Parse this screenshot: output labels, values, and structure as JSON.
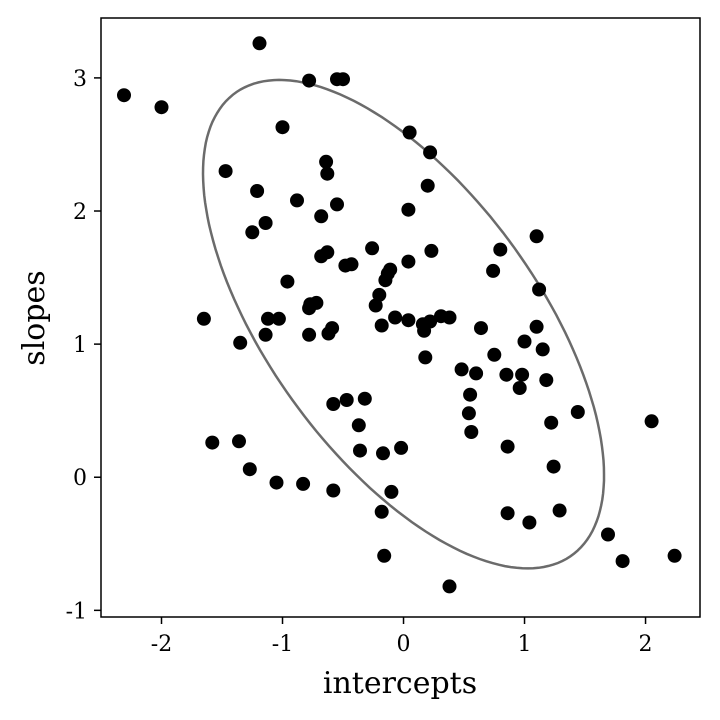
{
  "chart_data": {
    "type": "scatter",
    "xlabel": "intercepts",
    "ylabel": "slopes",
    "xlim": [
      -2.5,
      2.45
    ],
    "ylim": [
      -1.05,
      3.45
    ],
    "x_ticks": [
      -2,
      -1,
      0,
      1,
      2
    ],
    "y_ticks": [
      -1,
      0,
      1,
      2,
      3
    ],
    "x_tick_labels": [
      "-2",
      "-1",
      "0",
      "1",
      "2"
    ],
    "y_tick_labels": [
      "-1",
      "0",
      "1",
      "2",
      "3"
    ],
    "grid": false,
    "legend": "none",
    "point_color": "#000000",
    "ellipse_color": "#6b6b6b",
    "ellipse": {
      "center": [
        0.0,
        1.15
      ],
      "axis_endpoints": [
        [
          -1.44,
          2.85
        ],
        [
          1.44,
          -0.55
        ]
      ],
      "minor_endpoints": [
        [
          -0.82,
          0.46
        ],
        [
          0.82,
          1.84
        ]
      ]
    },
    "points": [
      [
        -1.19,
        3.26
      ],
      [
        -2.31,
        2.87
      ],
      [
        -2.0,
        2.78
      ],
      [
        -0.78,
        2.98
      ],
      [
        -0.55,
        2.99
      ],
      [
        -0.5,
        2.99
      ],
      [
        -1.0,
        2.63
      ],
      [
        0.05,
        2.59
      ],
      [
        0.22,
        2.44
      ],
      [
        -1.47,
        2.3
      ],
      [
        -0.64,
        2.37
      ],
      [
        -0.63,
        2.28
      ],
      [
        -1.21,
        2.15
      ],
      [
        0.2,
        2.19
      ],
      [
        -0.88,
        2.08
      ],
      [
        -0.55,
        2.05
      ],
      [
        -1.14,
        1.91
      ],
      [
        -0.68,
        1.96
      ],
      [
        0.04,
        2.01
      ],
      [
        -1.25,
        1.84
      ],
      [
        -0.63,
        1.69
      ],
      [
        -0.68,
        1.66
      ],
      [
        -0.26,
        1.72
      ],
      [
        0.8,
        1.71
      ],
      [
        1.1,
        1.81
      ],
      [
        -0.48,
        1.59
      ],
      [
        -0.43,
        1.6
      ],
      [
        -0.13,
        1.53
      ],
      [
        -0.11,
        1.56
      ],
      [
        0.23,
        1.7
      ],
      [
        0.04,
        1.62
      ],
      [
        0.74,
        1.55
      ],
      [
        -0.96,
        1.47
      ],
      [
        -0.15,
        1.48
      ],
      [
        -0.2,
        1.37
      ],
      [
        1.12,
        1.41
      ],
      [
        -0.77,
        1.3
      ],
      [
        -0.72,
        1.31
      ],
      [
        -0.78,
        1.27
      ],
      [
        -0.23,
        1.29
      ],
      [
        -1.65,
        1.19
      ],
      [
        -1.12,
        1.19
      ],
      [
        -1.03,
        1.19
      ],
      [
        -0.07,
        1.2
      ],
      [
        0.04,
        1.18
      ],
      [
        0.16,
        1.15
      ],
      [
        0.22,
        1.17
      ],
      [
        0.31,
        1.21
      ],
      [
        0.38,
        1.2
      ],
      [
        -0.59,
        1.12
      ],
      [
        -0.62,
        1.08
      ],
      [
        -0.78,
        1.07
      ],
      [
        -1.14,
        1.07
      ],
      [
        -0.18,
        1.14
      ],
      [
        0.17,
        1.1
      ],
      [
        0.64,
        1.12
      ],
      [
        1.1,
        1.13
      ],
      [
        -1.35,
        1.01
      ],
      [
        1.0,
        1.02
      ],
      [
        1.15,
        0.96
      ],
      [
        0.18,
        0.9
      ],
      [
        0.75,
        0.92
      ],
      [
        0.48,
        0.81
      ],
      [
        0.6,
        0.78
      ],
      [
        0.85,
        0.77
      ],
      [
        0.98,
        0.77
      ],
      [
        1.18,
        0.73
      ],
      [
        0.96,
        0.67
      ],
      [
        0.55,
        0.62
      ],
      [
        -0.58,
        0.55
      ],
      [
        -0.47,
        0.58
      ],
      [
        -0.32,
        0.59
      ],
      [
        0.54,
        0.48
      ],
      [
        1.44,
        0.49
      ],
      [
        -0.37,
        0.39
      ],
      [
        1.22,
        0.41
      ],
      [
        0.56,
        0.34
      ],
      [
        2.05,
        0.42
      ],
      [
        -1.58,
        0.26
      ],
      [
        -1.36,
        0.27
      ],
      [
        -0.36,
        0.2
      ],
      [
        -0.17,
        0.18
      ],
      [
        -0.02,
        0.22
      ],
      [
        0.86,
        0.23
      ],
      [
        -1.27,
        0.06
      ],
      [
        1.24,
        0.08
      ],
      [
        -1.05,
        -0.04
      ],
      [
        -0.83,
        -0.05
      ],
      [
        -0.58,
        -0.1
      ],
      [
        -0.1,
        -0.11
      ],
      [
        -0.18,
        -0.26
      ],
      [
        0.86,
        -0.27
      ],
      [
        1.04,
        -0.34
      ],
      [
        1.29,
        -0.25
      ],
      [
        1.69,
        -0.43
      ],
      [
        -0.16,
        -0.59
      ],
      [
        1.81,
        -0.63
      ],
      [
        2.24,
        -0.59
      ],
      [
        0.38,
        -0.82
      ]
    ]
  }
}
